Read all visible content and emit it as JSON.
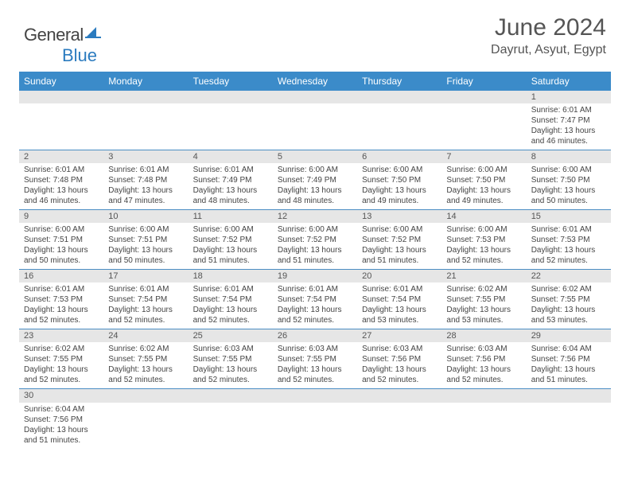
{
  "brand": {
    "part1": "General",
    "part2": "Blue"
  },
  "header": {
    "title": "June 2024",
    "location": "Dayrut, Asyut, Egypt"
  },
  "colors": {
    "header_bg": "#3b8bc9",
    "header_text": "#ffffff",
    "daynum_bg": "#e6e6e6",
    "border": "#4b8ec4",
    "body_text": "#444444",
    "title_text": "#555555"
  },
  "day_names": [
    "Sunday",
    "Monday",
    "Tuesday",
    "Wednesday",
    "Thursday",
    "Friday",
    "Saturday"
  ],
  "weeks": [
    [
      null,
      null,
      null,
      null,
      null,
      null,
      {
        "n": "1",
        "sr": "6:01 AM",
        "ss": "7:47 PM",
        "dl": "13 hours and 46 minutes."
      }
    ],
    [
      {
        "n": "2",
        "sr": "6:01 AM",
        "ss": "7:48 PM",
        "dl": "13 hours and 46 minutes."
      },
      {
        "n": "3",
        "sr": "6:01 AM",
        "ss": "7:48 PM",
        "dl": "13 hours and 47 minutes."
      },
      {
        "n": "4",
        "sr": "6:01 AM",
        "ss": "7:49 PM",
        "dl": "13 hours and 48 minutes."
      },
      {
        "n": "5",
        "sr": "6:00 AM",
        "ss": "7:49 PM",
        "dl": "13 hours and 48 minutes."
      },
      {
        "n": "6",
        "sr": "6:00 AM",
        "ss": "7:50 PM",
        "dl": "13 hours and 49 minutes."
      },
      {
        "n": "7",
        "sr": "6:00 AM",
        "ss": "7:50 PM",
        "dl": "13 hours and 49 minutes."
      },
      {
        "n": "8",
        "sr": "6:00 AM",
        "ss": "7:50 PM",
        "dl": "13 hours and 50 minutes."
      }
    ],
    [
      {
        "n": "9",
        "sr": "6:00 AM",
        "ss": "7:51 PM",
        "dl": "13 hours and 50 minutes."
      },
      {
        "n": "10",
        "sr": "6:00 AM",
        "ss": "7:51 PM",
        "dl": "13 hours and 50 minutes."
      },
      {
        "n": "11",
        "sr": "6:00 AM",
        "ss": "7:52 PM",
        "dl": "13 hours and 51 minutes."
      },
      {
        "n": "12",
        "sr": "6:00 AM",
        "ss": "7:52 PM",
        "dl": "13 hours and 51 minutes."
      },
      {
        "n": "13",
        "sr": "6:00 AM",
        "ss": "7:52 PM",
        "dl": "13 hours and 51 minutes."
      },
      {
        "n": "14",
        "sr": "6:00 AM",
        "ss": "7:53 PM",
        "dl": "13 hours and 52 minutes."
      },
      {
        "n": "15",
        "sr": "6:01 AM",
        "ss": "7:53 PM",
        "dl": "13 hours and 52 minutes."
      }
    ],
    [
      {
        "n": "16",
        "sr": "6:01 AM",
        "ss": "7:53 PM",
        "dl": "13 hours and 52 minutes."
      },
      {
        "n": "17",
        "sr": "6:01 AM",
        "ss": "7:54 PM",
        "dl": "13 hours and 52 minutes."
      },
      {
        "n": "18",
        "sr": "6:01 AM",
        "ss": "7:54 PM",
        "dl": "13 hours and 52 minutes."
      },
      {
        "n": "19",
        "sr": "6:01 AM",
        "ss": "7:54 PM",
        "dl": "13 hours and 52 minutes."
      },
      {
        "n": "20",
        "sr": "6:01 AM",
        "ss": "7:54 PM",
        "dl": "13 hours and 53 minutes."
      },
      {
        "n": "21",
        "sr": "6:02 AM",
        "ss": "7:55 PM",
        "dl": "13 hours and 53 minutes."
      },
      {
        "n": "22",
        "sr": "6:02 AM",
        "ss": "7:55 PM",
        "dl": "13 hours and 53 minutes."
      }
    ],
    [
      {
        "n": "23",
        "sr": "6:02 AM",
        "ss": "7:55 PM",
        "dl": "13 hours and 52 minutes."
      },
      {
        "n": "24",
        "sr": "6:02 AM",
        "ss": "7:55 PM",
        "dl": "13 hours and 52 minutes."
      },
      {
        "n": "25",
        "sr": "6:03 AM",
        "ss": "7:55 PM",
        "dl": "13 hours and 52 minutes."
      },
      {
        "n": "26",
        "sr": "6:03 AM",
        "ss": "7:55 PM",
        "dl": "13 hours and 52 minutes."
      },
      {
        "n": "27",
        "sr": "6:03 AM",
        "ss": "7:56 PM",
        "dl": "13 hours and 52 minutes."
      },
      {
        "n": "28",
        "sr": "6:03 AM",
        "ss": "7:56 PM",
        "dl": "13 hours and 52 minutes."
      },
      {
        "n": "29",
        "sr": "6:04 AM",
        "ss": "7:56 PM",
        "dl": "13 hours and 51 minutes."
      }
    ],
    [
      {
        "n": "30",
        "sr": "6:04 AM",
        "ss": "7:56 PM",
        "dl": "13 hours and 51 minutes."
      },
      null,
      null,
      null,
      null,
      null,
      null
    ]
  ],
  "labels": {
    "sunrise": "Sunrise:",
    "sunset": "Sunset:",
    "daylight": "Daylight:"
  }
}
